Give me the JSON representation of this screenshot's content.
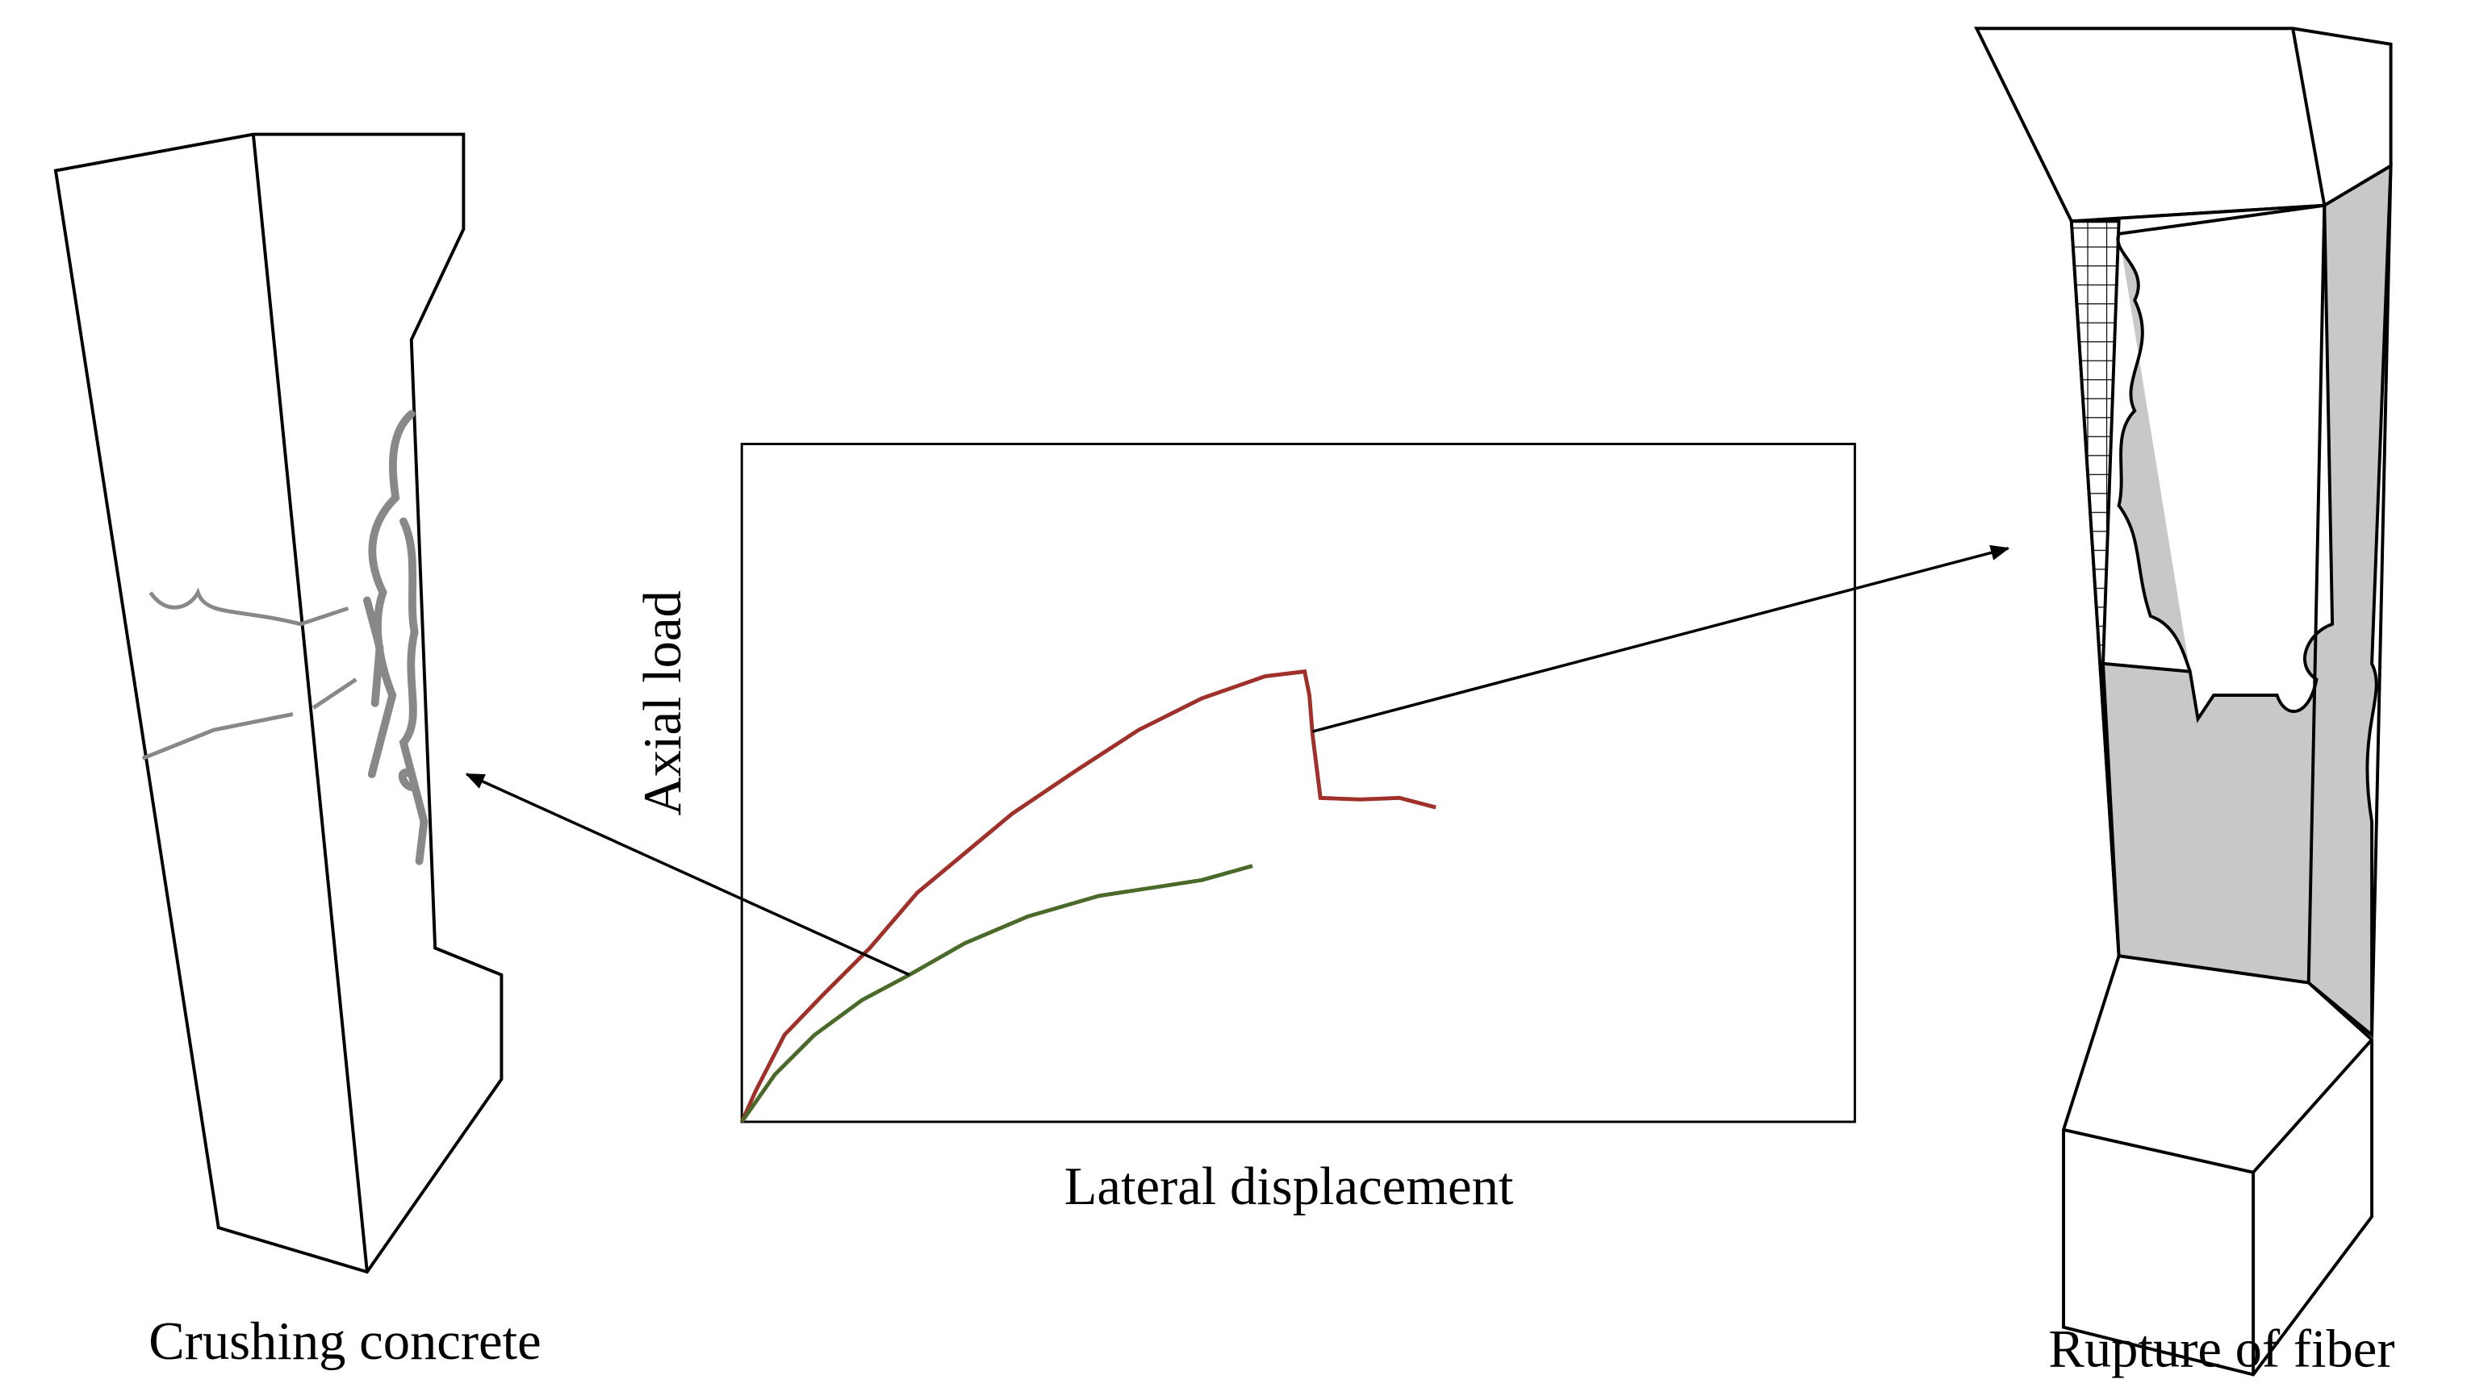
{
  "chart": {
    "x_label": "Lateral displacement",
    "y_label": "Axial load"
  },
  "specimens": [
    {
      "label": "Crushing concrete"
    },
    {
      "label": "Rupture of fiber"
    }
  ]
}
